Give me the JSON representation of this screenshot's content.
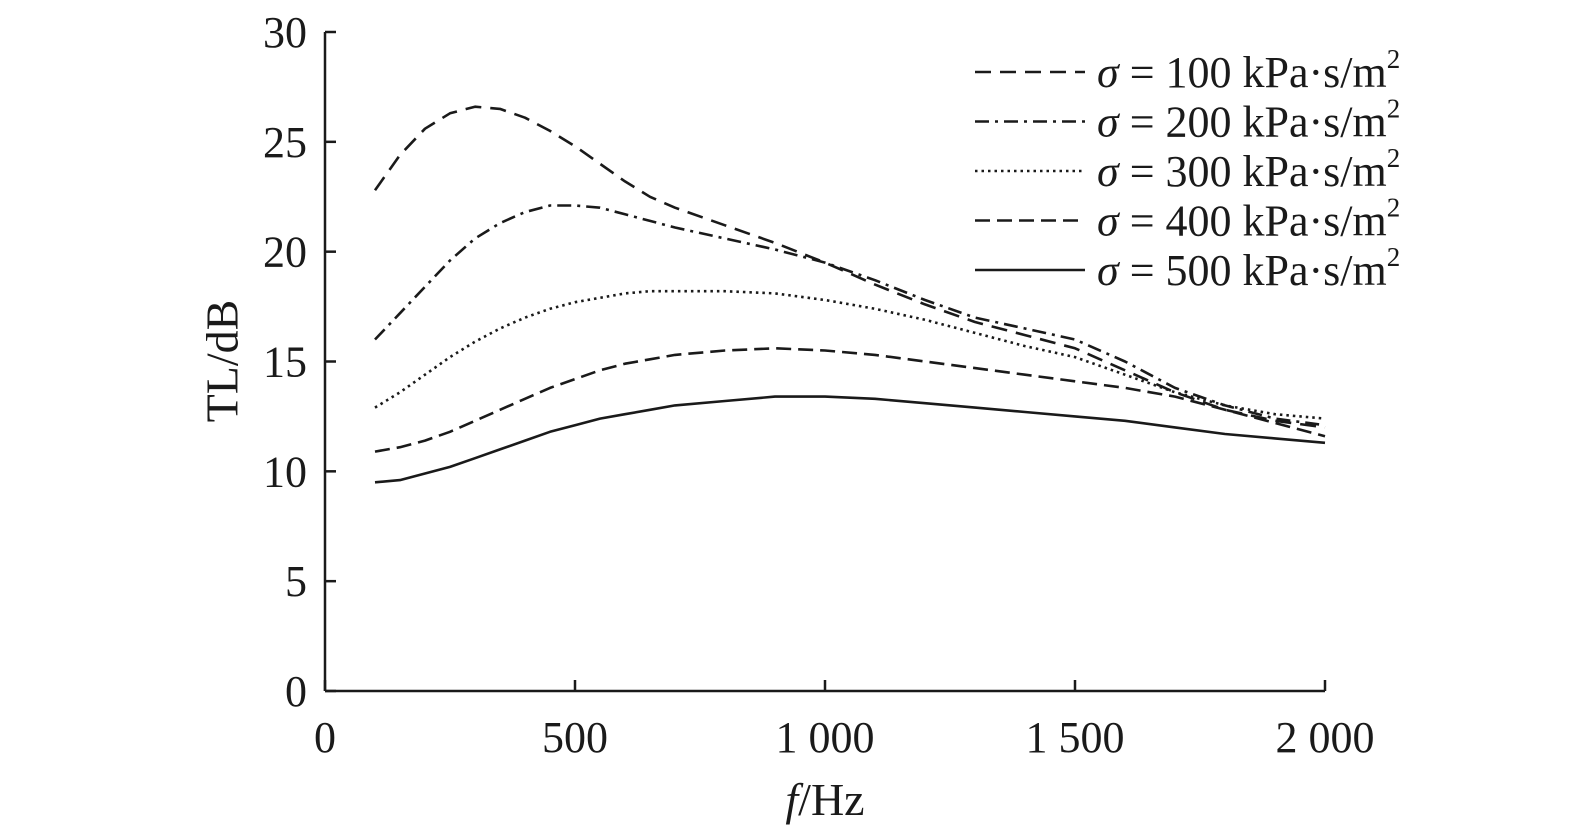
{
  "chart_data": {
    "type": "line",
    "xlabel": {
      "italic": "f",
      "rest": "/Hz"
    },
    "ylabel": "TL/dB",
    "xlim": [
      0,
      2000
    ],
    "ylim": [
      0,
      30
    ],
    "x_ticks": [
      {
        "value": 0,
        "label": "0"
      },
      {
        "value": 500,
        "label": "500"
      },
      {
        "value": 1000,
        "label": "1 000"
      },
      {
        "value": 1500,
        "label": "1 500"
      },
      {
        "value": 2000,
        "label": "2 000"
      }
    ],
    "y_ticks": [
      {
        "value": 0,
        "label": "0"
      },
      {
        "value": 5,
        "label": "5"
      },
      {
        "value": 10,
        "label": "10"
      },
      {
        "value": 15,
        "label": "15"
      },
      {
        "value": 20,
        "label": "20"
      },
      {
        "value": 25,
        "label": "25"
      },
      {
        "value": 30,
        "label": "30"
      }
    ],
    "grid": false,
    "legend_position": "top-right",
    "series": [
      {
        "name": {
          "symbol": "σ",
          "text": " = 100 kPa·s/m",
          "sup": "2"
        },
        "line_style": "dashed",
        "x": [
          100,
          150,
          200,
          250,
          300,
          350,
          400,
          450,
          500,
          550,
          600,
          650,
          700,
          800,
          900,
          1000,
          1100,
          1200,
          1300,
          1400,
          1500,
          1600,
          1700,
          1800,
          1900,
          2000
        ],
        "y": [
          22.8,
          24.4,
          25.6,
          26.3,
          26.6,
          26.5,
          26.1,
          25.5,
          24.8,
          24.0,
          23.2,
          22.5,
          22.0,
          21.2,
          20.4,
          19.5,
          18.5,
          17.6,
          16.8,
          16.2,
          15.6,
          14.6,
          13.6,
          12.8,
          12.3,
          12.0
        ]
      },
      {
        "name": {
          "symbol": "σ",
          "text": " = 200 kPa·s/m",
          "sup": "2"
        },
        "line_style": "dash-dot",
        "x": [
          100,
          150,
          200,
          250,
          300,
          350,
          400,
          450,
          500,
          550,
          600,
          650,
          700,
          800,
          900,
          1000,
          1100,
          1200,
          1300,
          1400,
          1500,
          1600,
          1700,
          1800,
          1900,
          2000
        ],
        "y": [
          16.0,
          17.2,
          18.4,
          19.6,
          20.6,
          21.3,
          21.8,
          22.1,
          22.1,
          22.0,
          21.7,
          21.4,
          21.1,
          20.6,
          20.1,
          19.5,
          18.7,
          17.8,
          17.0,
          16.5,
          16.0,
          15.0,
          13.8,
          13.0,
          12.4,
          12.1
        ]
      },
      {
        "name": {
          "symbol": "σ",
          "text": " = 300 kPa·s/m",
          "sup": "2"
        },
        "line_style": "dotted",
        "x": [
          100,
          150,
          200,
          250,
          300,
          350,
          400,
          450,
          500,
          550,
          600,
          650,
          700,
          800,
          900,
          1000,
          1100,
          1200,
          1300,
          1400,
          1500,
          1600,
          1700,
          1800,
          1900,
          2000
        ],
        "y": [
          12.9,
          13.6,
          14.4,
          15.2,
          15.9,
          16.5,
          17.0,
          17.4,
          17.7,
          17.9,
          18.1,
          18.2,
          18.2,
          18.2,
          18.1,
          17.8,
          17.4,
          16.9,
          16.3,
          15.7,
          15.2,
          14.4,
          13.6,
          13.0,
          12.6,
          12.4
        ]
      },
      {
        "name": {
          "symbol": "σ",
          "text": " = 400 kPa·s/m",
          "sup": "2"
        },
        "line_style": "long-dash",
        "x": [
          100,
          150,
          200,
          250,
          300,
          350,
          400,
          450,
          500,
          550,
          600,
          650,
          700,
          800,
          900,
          1000,
          1100,
          1200,
          1300,
          1400,
          1500,
          1600,
          1700,
          1800,
          1900,
          2000
        ],
        "y": [
          10.9,
          11.1,
          11.4,
          11.8,
          12.3,
          12.8,
          13.3,
          13.8,
          14.2,
          14.6,
          14.9,
          15.1,
          15.3,
          15.5,
          15.6,
          15.5,
          15.3,
          15.0,
          14.7,
          14.4,
          14.1,
          13.8,
          13.4,
          12.8,
          12.2,
          11.6
        ]
      },
      {
        "name": {
          "symbol": "σ",
          "text": " = 500 kPa·s/m",
          "sup": "2"
        },
        "line_style": "solid",
        "x": [
          100,
          150,
          200,
          250,
          300,
          350,
          400,
          450,
          500,
          550,
          600,
          650,
          700,
          800,
          900,
          1000,
          1100,
          1200,
          1300,
          1400,
          1500,
          1600,
          1700,
          1800,
          1900,
          2000
        ],
        "y": [
          9.5,
          9.6,
          9.9,
          10.2,
          10.6,
          11.0,
          11.4,
          11.8,
          12.1,
          12.4,
          12.6,
          12.8,
          13.0,
          13.2,
          13.4,
          13.4,
          13.3,
          13.1,
          12.9,
          12.7,
          12.5,
          12.3,
          12.0,
          11.7,
          11.5,
          11.3
        ]
      }
    ]
  }
}
